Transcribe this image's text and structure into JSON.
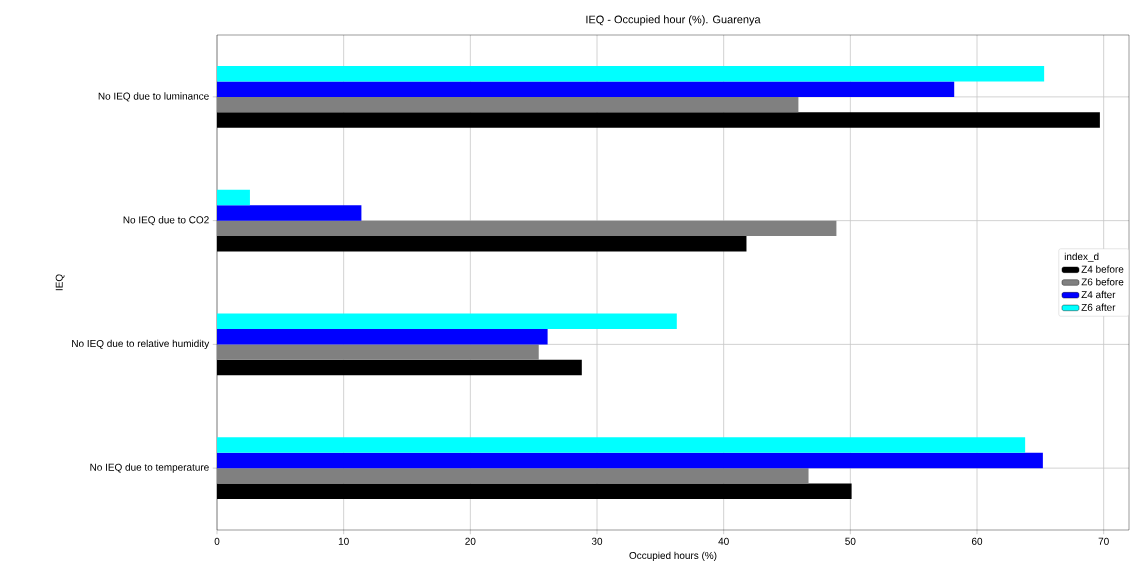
{
  "chart_data": {
    "type": "bar",
    "orientation": "horizontal",
    "title": "IEQ - Occupied hour (%). Guarenya",
    "xlabel": "Occupied hours (%)",
    "ylabel": "IEQ",
    "legend_title": "index_d",
    "categories": [
      "No IEQ due to luminance",
      "No IEQ due to CO2",
      "No IEQ due to relative humidity",
      "No IEQ due to temperature"
    ],
    "series": [
      {
        "name": "Z4 before",
        "color": "#000000",
        "values": [
          69.7,
          41.8,
          28.8,
          50.1
        ]
      },
      {
        "name": "Z6 before",
        "color": "#808080",
        "values": [
          45.9,
          48.9,
          25.4,
          46.7
        ]
      },
      {
        "name": "Z4 after",
        "color": "#0000ff",
        "values": [
          58.2,
          11.4,
          26.1,
          65.2
        ]
      },
      {
        "name": "Z6 after",
        "color": "#00ffff",
        "values": [
          65.3,
          2.6,
          36.3,
          63.8
        ]
      }
    ],
    "xlim": [
      0,
      72
    ],
    "xticks": [
      0,
      10,
      20,
      30,
      40,
      50,
      60,
      70
    ],
    "grid": true,
    "legend": "right"
  }
}
